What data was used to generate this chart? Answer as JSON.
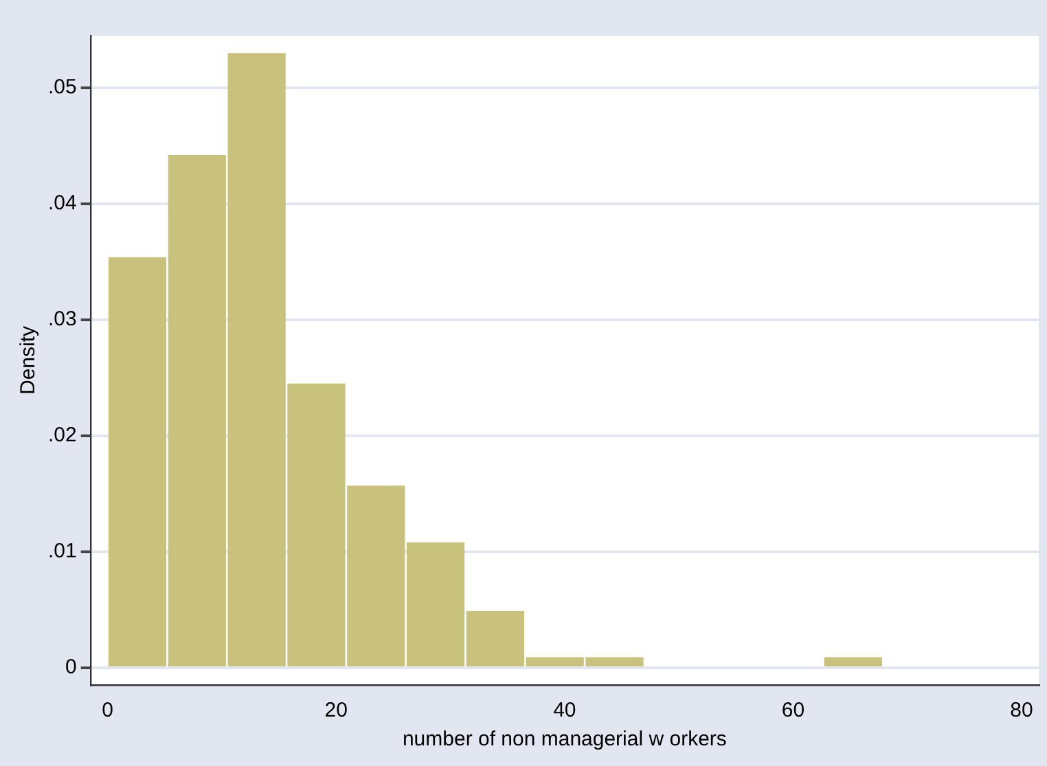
{
  "chart_data": {
    "type": "histogram",
    "xlabel": "number of non managerial w orkers",
    "ylabel": "Density",
    "bins": [
      0,
      5.22,
      10.44,
      15.66,
      20.88,
      26.1,
      31.32,
      36.54,
      41.76,
      46.98,
      52.2,
      57.42,
      62.64,
      67.86
    ],
    "values": [
      0.0354,
      0.0442,
      0.053,
      0.0245,
      0.0157,
      0.0108,
      0.0049,
      0.0009,
      0.0009,
      0,
      0,
      0,
      0.0009
    ],
    "color": "#c9c27c",
    "xlim": [
      -1.5,
      81.5
    ],
    "xticks": [
      0,
      20,
      40,
      60,
      80
    ],
    "ylim": [
      -0.0015,
      0.0545
    ],
    "yticks": [
      {
        "value": 0,
        "label": "0"
      },
      {
        "value": 0.01,
        "label": ".01"
      },
      {
        "value": 0.02,
        "label": ".02"
      },
      {
        "value": 0.03,
        "label": ".03"
      },
      {
        "value": 0.04,
        "label": ".04"
      },
      {
        "value": 0.05,
        "label": ".05"
      }
    ],
    "grid": "y",
    "legend": false
  }
}
